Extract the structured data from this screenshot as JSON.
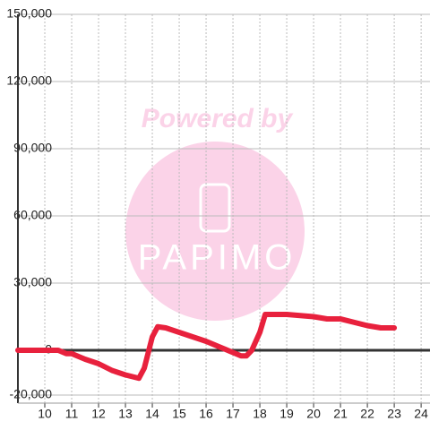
{
  "chart_data": {
    "type": "line",
    "watermark": {
      "title": "Powered by",
      "logo": "PAPIMO"
    },
    "xlim": [
      9,
      24.33
    ],
    "xticks": [
      10,
      11,
      12,
      13,
      14,
      15,
      16,
      17,
      18,
      19,
      20,
      21,
      22,
      23,
      24
    ],
    "ylim": [
      -23600,
      150000
    ],
    "yticks": [
      {
        "value": -20000,
        "label": "-20,000"
      },
      0,
      {
        "value": 30000,
        "label": "30,000"
      },
      {
        "value": 60000,
        "label": "60,000"
      },
      {
        "value": 90000,
        "label": "90,000"
      },
      {
        "value": 120000,
        "label": "120,000"
      },
      {
        "value": 150000,
        "label": "150,000"
      }
    ],
    "grid": true,
    "series": [
      {
        "color": "#e8213d",
        "x": [
          9,
          10.5,
          10.8,
          11,
          11.5,
          12,
          12.5,
          13,
          13.5,
          13.7,
          14,
          14.2,
          14.5,
          15,
          15.5,
          16,
          16.5,
          17,
          17.3,
          17.5,
          17.7,
          18,
          18.2,
          19,
          20,
          20.5,
          21,
          21.5,
          22,
          22.5,
          23
        ],
        "values": [
          0,
          0,
          -1500,
          -1500,
          -4000,
          -6000,
          -9000,
          -11000,
          -12500,
          -8000,
          6000,
          10500,
          10000,
          8000,
          6000,
          4000,
          1500,
          -1000,
          -2500,
          -2500,
          0,
          8000,
          16000,
          16000,
          15000,
          14000,
          14000,
          12500,
          11000,
          10000,
          10000
        ]
      }
    ]
  }
}
